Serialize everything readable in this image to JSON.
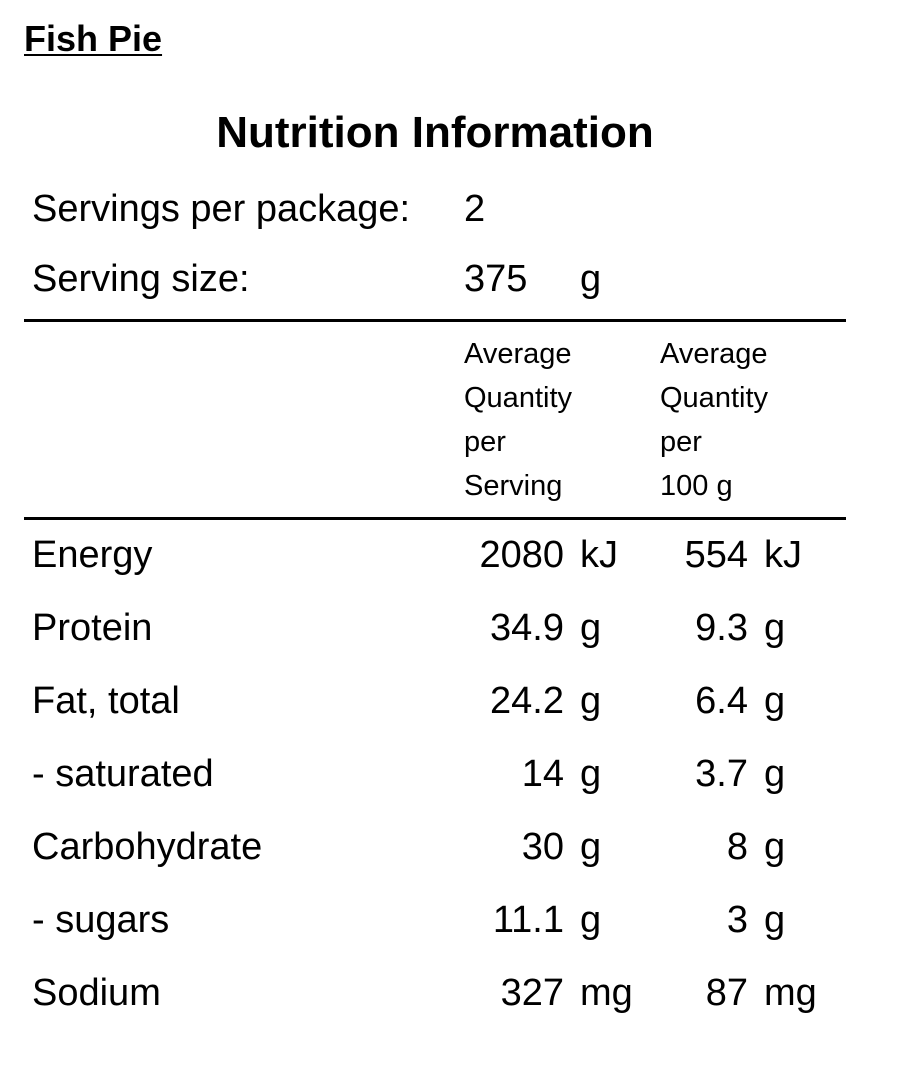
{
  "product_title": "Fish Pie",
  "panel_title": "Nutrition Information",
  "servings_per_package": {
    "label": "Servings per package:",
    "value": "2"
  },
  "serving_size": {
    "label": "Serving size:",
    "value": "375",
    "unit": "g"
  },
  "column_headers": {
    "per_serving": [
      "Average",
      "Quantity",
      "per",
      "Serving"
    ],
    "per_100g": [
      "Average",
      "Quantity",
      "per",
      "100 g"
    ]
  },
  "rows": [
    {
      "nutrient": "Energy",
      "per_serving": "2080",
      "per_serving_unit": "kJ",
      "per_100g": "554",
      "per_100g_unit": "kJ"
    },
    {
      "nutrient": "Protein",
      "per_serving": "34.9",
      "per_serving_unit": "g",
      "per_100g": "9.3",
      "per_100g_unit": "g"
    },
    {
      "nutrient": "Fat, total",
      "per_serving": "24.2",
      "per_serving_unit": "g",
      "per_100g": "6.4",
      "per_100g_unit": "g"
    },
    {
      "nutrient": "- saturated",
      "per_serving": "14",
      "per_serving_unit": "g",
      "per_100g": "3.7",
      "per_100g_unit": "g"
    },
    {
      "nutrient": "Carbohydrate",
      "per_serving": "30",
      "per_serving_unit": "g",
      "per_100g": "8",
      "per_100g_unit": "g"
    },
    {
      "nutrient": "- sugars",
      "per_serving": "11.1",
      "per_serving_unit": "g",
      "per_100g": "3",
      "per_100g_unit": "g"
    },
    {
      "nutrient": "Sodium",
      "per_serving": "327",
      "per_serving_unit": "mg",
      "per_100g": "87",
      "per_100g_unit": "mg"
    }
  ]
}
